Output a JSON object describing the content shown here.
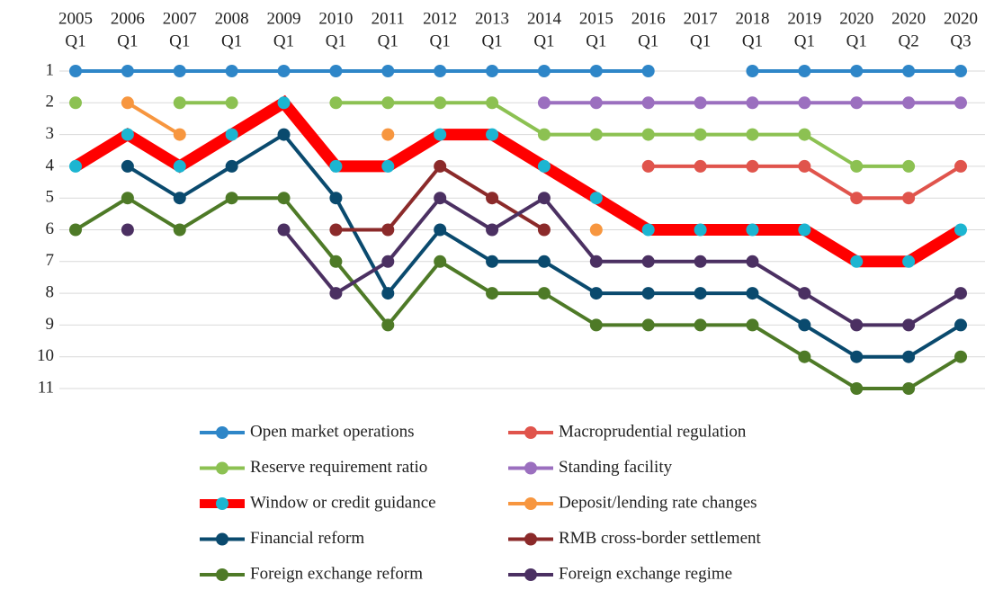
{
  "chart_data": {
    "type": "line",
    "categories": [
      [
        "2005",
        "Q1"
      ],
      [
        "2006",
        "Q1"
      ],
      [
        "2007",
        "Q1"
      ],
      [
        "2008",
        "Q1"
      ],
      [
        "2009",
        "Q1"
      ],
      [
        "2010",
        "Q1"
      ],
      [
        "2011",
        "Q1"
      ],
      [
        "2012",
        "Q1"
      ],
      [
        "2013",
        "Q1"
      ],
      [
        "2014",
        "Q1"
      ],
      [
        "2015",
        "Q1"
      ],
      [
        "2016",
        "Q1"
      ],
      [
        "2017",
        "Q1"
      ],
      [
        "2018",
        "Q1"
      ],
      [
        "2019",
        "Q1"
      ],
      [
        "2020",
        "Q1"
      ],
      [
        "2020",
        "Q2"
      ],
      [
        "2020",
        "Q3"
      ]
    ],
    "ylim": [
      11,
      1
    ],
    "yticks": [
      1,
      2,
      3,
      4,
      5,
      6,
      7,
      8,
      9,
      10,
      11
    ],
    "grid": true,
    "series": [
      {
        "name": "Open market operations",
        "color": "#2e86c8",
        "values": [
          1,
          1,
          1,
          1,
          1,
          1,
          1,
          1,
          1,
          1,
          1,
          1,
          null,
          1,
          1,
          1,
          1,
          1
        ]
      },
      {
        "name": "Macroprudential regulation",
        "color": "#e0544c",
        "values": [
          null,
          null,
          null,
          null,
          null,
          null,
          null,
          null,
          null,
          null,
          null,
          4,
          4,
          4,
          4,
          5,
          5,
          4
        ]
      },
      {
        "name": "Reserve requirement ratio",
        "color": "#8cc152",
        "values": [
          2,
          null,
          2,
          2,
          null,
          2,
          2,
          2,
          2,
          3,
          3,
          3,
          3,
          3,
          3,
          4,
          4,
          null
        ]
      },
      {
        "name": "Standing facility",
        "color": "#9b6fbf",
        "values": [
          null,
          null,
          null,
          null,
          null,
          null,
          null,
          null,
          null,
          2,
          2,
          2,
          2,
          2,
          2,
          2,
          2,
          2
        ]
      },
      {
        "name": "Window or credit guidance",
        "color": "#ff0000",
        "marker_color": "#1cb5d1",
        "values": [
          4,
          3,
          4,
          3,
          2,
          4,
          4,
          3,
          3,
          4,
          5,
          6,
          6,
          6,
          6,
          7,
          7,
          6
        ]
      },
      {
        "name": "Deposit/lending rate changes",
        "color": "#f7963f",
        "values": [
          null,
          2,
          3,
          null,
          null,
          null,
          3,
          null,
          null,
          null,
          6,
          null,
          null,
          null,
          null,
          null,
          null,
          null
        ]
      },
      {
        "name": "Financial reform",
        "color": "#0a4a6e",
        "values": [
          null,
          4,
          5,
          4,
          3,
          5,
          8,
          6,
          7,
          7,
          8,
          8,
          8,
          8,
          9,
          10,
          10,
          9
        ]
      },
      {
        "name": "RMB cross-border settlement",
        "color": "#8b2a2a",
        "values": [
          null,
          null,
          null,
          null,
          null,
          6,
          6,
          4,
          5,
          6,
          null,
          null,
          null,
          null,
          null,
          null,
          null,
          null
        ]
      },
      {
        "name": "Foreign exchange reform",
        "color": "#4e7a27",
        "values": [
          6,
          5,
          6,
          5,
          5,
          7,
          9,
          7,
          8,
          8,
          9,
          9,
          9,
          9,
          10,
          11,
          11,
          10
        ]
      },
      {
        "name": "Foreign exchange regime",
        "color": "#4b3062",
        "values": [
          null,
          6,
          null,
          null,
          6,
          8,
          7,
          5,
          6,
          5,
          7,
          7,
          7,
          7,
          8,
          9,
          9,
          8
        ]
      }
    ]
  }
}
